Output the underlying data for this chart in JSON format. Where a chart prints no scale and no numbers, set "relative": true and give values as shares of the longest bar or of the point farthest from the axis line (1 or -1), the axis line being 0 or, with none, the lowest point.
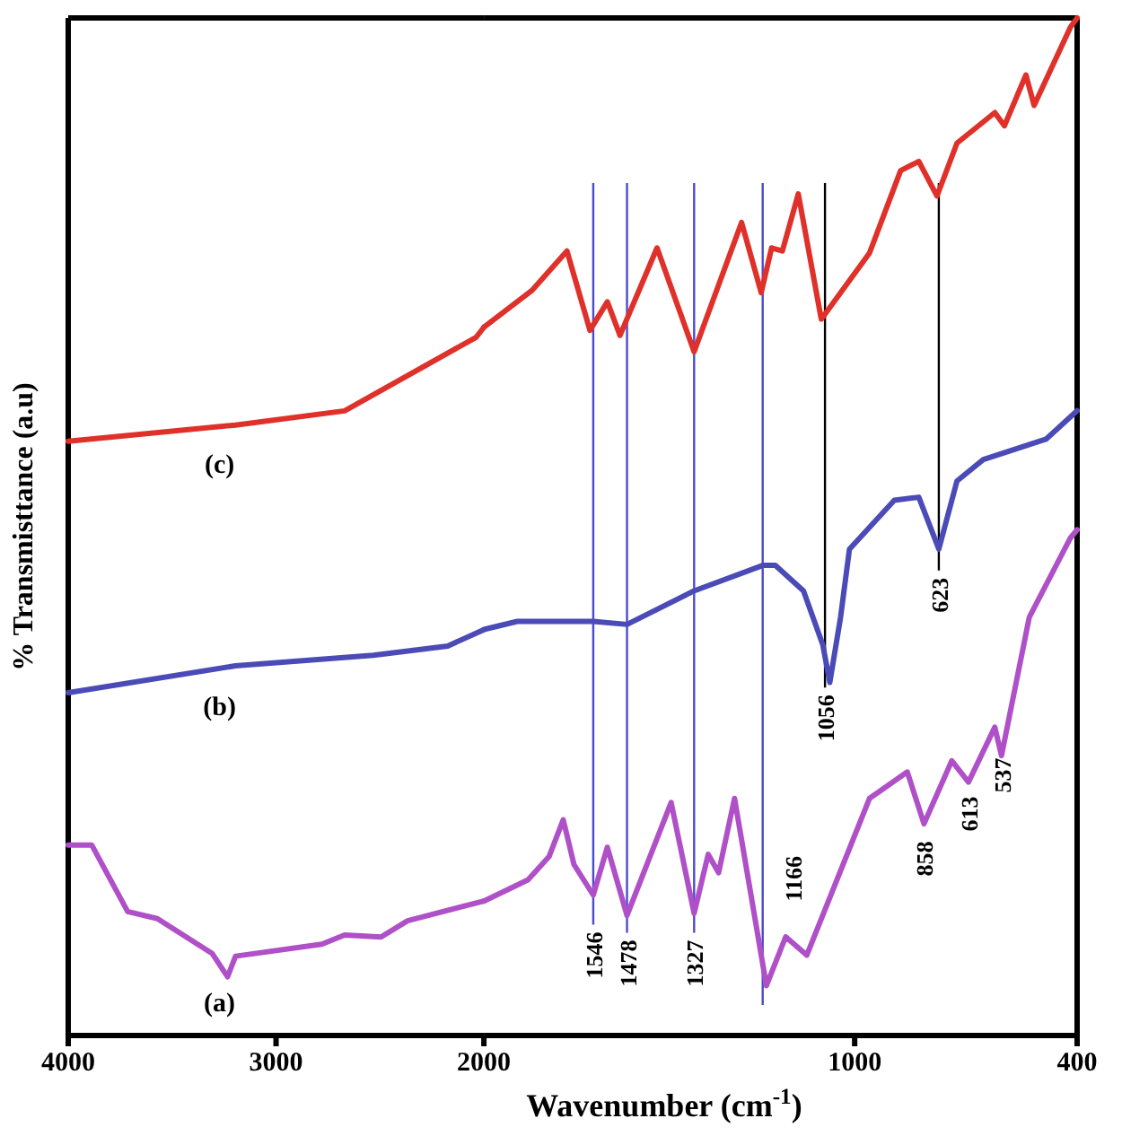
{
  "chart_data": [
    {
      "type": "line",
      "relative": true,
      "ylabel": "% Transmisttance (a.u)",
      "xlim": [
        4000,
        2000
      ],
      "xticks": [
        4000,
        3000,
        2000
      ],
      "tick_labels": "x",
      "line_style": "solid",
      "series": [
        {
          "name": "(c)",
          "color": "#e0302a",
          "x": [
            4000,
            3195,
            2670,
            2037,
            2000
          ],
          "values": [
            0.839,
            0.862,
            0.882,
            0.986,
            1.0
          ]
        },
        {
          "name": "(b)",
          "color": "#4b4bb8",
          "x": [
            4000,
            3195,
            2532,
            2174,
            2000
          ],
          "values": [
            0.484,
            0.522,
            0.537,
            0.55,
            0.573
          ]
        },
        {
          "name": "(a)",
          "color": "#b050c8",
          "x": [
            4000,
            3887,
            3714,
            3571,
            3308,
            3233,
            3195,
            2780,
            2670,
            2495,
            2367,
            2000
          ],
          "values": [
            0.269,
            0.269,
            0.175,
            0.165,
            0.116,
            0.083,
            0.112,
            0.129,
            0.142,
            0.139,
            0.162,
            0.19
          ]
        }
      ]
    },
    {
      "type": "line",
      "relative": true,
      "xlabel": "Wavenumber (cm$^{-1}$)",
      "xlim": [
        2000,
        400
      ],
      "xticks": [
        1000,
        400
      ],
      "tick_labels": "x",
      "line_style": "solid",
      "series": [
        {
          "color": "#e0302a",
          "x": [
            2000,
            1871,
            1776,
            1714,
            1667,
            1633,
            1533,
            1433,
            1305,
            1252,
            1224,
            1195,
            1152,
            1090,
            960,
            876,
            827,
            778,
            724,
            622,
            596,
            538,
            516,
            418,
            400
          ],
          "values": [
            0.696,
            0.732,
            0.771,
            0.693,
            0.721,
            0.688,
            0.774,
            0.672,
            0.799,
            0.73,
            0.774,
            0.771,
            0.827,
            0.704,
            0.769,
            0.85,
            0.859,
            0.825,
            0.877,
            0.907,
            0.894,
            0.944,
            0.914,
            0.991,
            1.0
          ]
        },
        {
          "color": "#4b4bb8",
          "x": [
            2000,
            1910,
            1819,
            1705,
            1614,
            1433,
            1248,
            1214,
            1138,
            1086,
            1067,
            1038,
            1014,
            893,
            827,
            773,
            724,
            653,
            484,
            400
          ],
          "values": [
            0.399,
            0.407,
            0.407,
            0.407,
            0.404,
            0.437,
            0.462,
            0.462,
            0.437,
            0.384,
            0.347,
            0.411,
            0.478,
            0.526,
            0.529,
            0.478,
            0.545,
            0.566,
            0.586,
            0.614
          ]
        },
        {
          "color": "#b050c8",
          "x": [
            2000,
            1881,
            1824,
            1786,
            1757,
            1705,
            1667,
            1614,
            1495,
            1433,
            1395,
            1367,
            1324,
            1238,
            1186,
            1129,
            960,
            858,
            813,
            738,
            693,
            622,
            604,
            529,
            418,
            400
          ],
          "values": [
            0.132,
            0.153,
            0.176,
            0.212,
            0.168,
            0.138,
            0.185,
            0.118,
            0.229,
            0.12,
            0.178,
            0.16,
            0.233,
            0.049,
            0.097,
            0.079,
            0.233,
            0.259,
            0.208,
            0.27,
            0.249,
            0.303,
            0.275,
            0.411,
            0.489,
            0.497
          ]
        }
      ],
      "ref_lines": [
        {
          "axis": "x",
          "value": 1705,
          "color": "#4a4ad0"
        },
        {
          "axis": "x",
          "value": 1614,
          "color": "#4a4ad0"
        },
        {
          "axis": "x",
          "value": 1433,
          "color": "#4a4ad0"
        },
        {
          "axis": "x",
          "value": 1248,
          "color": "#4a4ad0"
        },
        {
          "axis": "x",
          "value": 1080,
          "color": "#000000"
        },
        {
          "axis": "x",
          "value": 773,
          "color": "#000000"
        }
      ],
      "annotations": [
        "1166",
        {
          "text": "1546",
          "x": 1705,
          "y": 0.109
        },
        {
          "text": "1478",
          "x": 1614,
          "y": 0.101
        },
        {
          "text": "1327",
          "x": 1433,
          "y": 0.101
        },
        {
          "text": "1056",
          "x": 1080,
          "y": 0.342
        },
        {
          "text": "623",
          "x": 773,
          "y": 0.457
        },
        {
          "text": "858",
          "x": 813,
          "y": 0.198
        },
        {
          "text": "613",
          "x": 693,
          "y": 0.242
        },
        {
          "text": "537",
          "x": 604,
          "y": 0.28
        }
      ]
    }
  ]
}
